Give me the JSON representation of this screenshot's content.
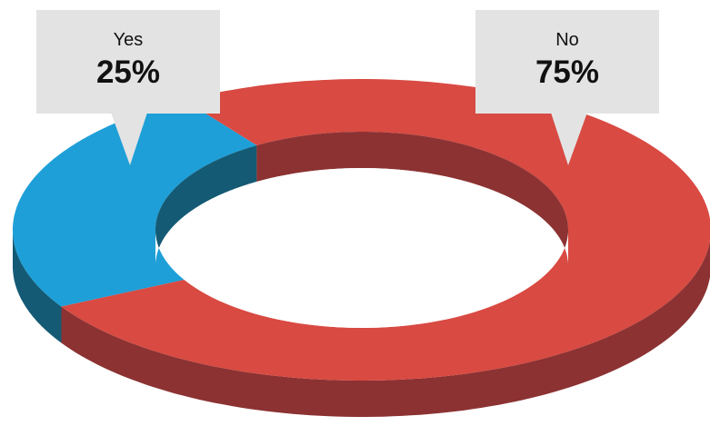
{
  "chart_data": {
    "type": "pie",
    "style": "3d-donut",
    "legend": "callouts",
    "slices": [
      {
        "label": "Yes",
        "value": 25,
        "value_label": "25%",
        "color": "#1e9fd8",
        "side_color": "#145a74"
      },
      {
        "label": "No",
        "value": 75,
        "value_label": "75%",
        "color": "#d84a42",
        "side_color": "#8c3232"
      }
    ]
  }
}
